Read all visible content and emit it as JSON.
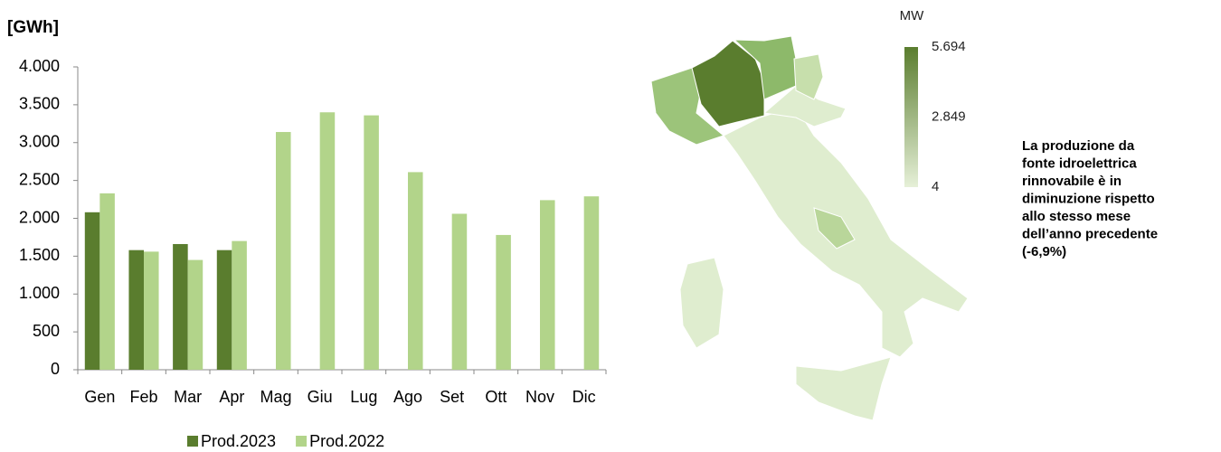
{
  "chart_data": [
    {
      "type": "bar",
      "y_label": "[GWh]",
      "categories": [
        "Gen",
        "Feb",
        "Mar",
        "Apr",
        "Mag",
        "Giu",
        "Lug",
        "Ago",
        "Set",
        "Ott",
        "Nov",
        "Dic"
      ],
      "series": [
        {
          "name": "Prod.2023",
          "color": "#5a7d2e",
          "values": [
            2080,
            1580,
            1660,
            1580,
            null,
            null,
            null,
            null,
            null,
            null,
            null,
            null
          ]
        },
        {
          "name": "Prod.2022",
          "color": "#b2d48a",
          "values": [
            2330,
            1560,
            1450,
            1700,
            3140,
            3400,
            3360,
            2610,
            2060,
            1780,
            2240,
            2290
          ]
        }
      ],
      "ylim": [
        0,
        4000
      ],
      "yticks": [
        0,
        500,
        {
          "value": 1000,
          "label": "1.000"
        },
        {
          "value": 1500,
          "label": "1.500"
        },
        {
          "value": 2000,
          "label": "2.000"
        },
        {
          "value": 2500,
          "label": "2.500"
        },
        {
          "value": 3000,
          "label": "3.000"
        },
        {
          "value": 3500,
          "label": "3.500"
        },
        {
          "value": 4000,
          "label": "4.000"
        }
      ],
      "legend": "bottom"
    },
    {
      "type": "map",
      "colorbar_title": "MW",
      "colors": [
        "#e6f0d8",
        "#5a7d2e"
      ],
      "colorbar_ticks": [
        {
          "value": 5694,
          "label": "5.694"
        },
        {
          "value": 2849,
          "label": "2.849"
        },
        4
      ],
      "annotation": [
        "La produzione da",
        "fonte idroelettrica",
        "rinnovabile è in",
        "diminuzione rispetto",
        "allo stesso mese",
        "dell’anno precedente",
        "(-6,9%)"
      ]
    }
  ]
}
